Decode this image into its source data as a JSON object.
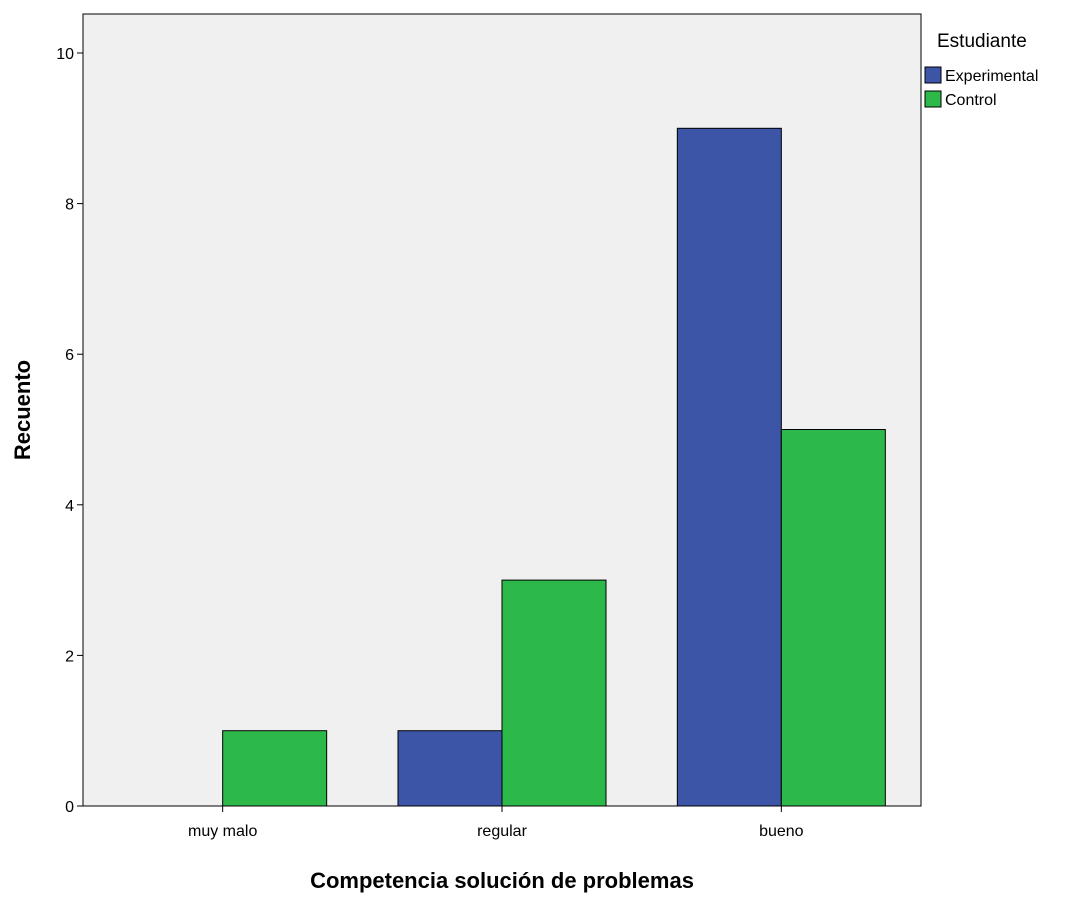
{
  "chart_data": {
    "type": "bar",
    "categories": [
      "muy malo",
      "regular",
      "bueno"
    ],
    "series": [
      {
        "name": "Experimental",
        "values": [
          0,
          1,
          9
        ],
        "color": "#3c55a6"
      },
      {
        "name": "Control",
        "values": [
          1,
          3,
          5
        ],
        "color": "#2db84a"
      }
    ],
    "title": "",
    "xlabel": "Competencia solución de problemas",
    "ylabel": "Recuento",
    "ylim": [
      0,
      10
    ],
    "yticks": [
      0,
      2,
      4,
      6,
      8,
      10
    ],
    "legend": {
      "title": "Estudiante",
      "position": "right"
    },
    "grid": false,
    "plot_background": "#f0f0f0"
  }
}
